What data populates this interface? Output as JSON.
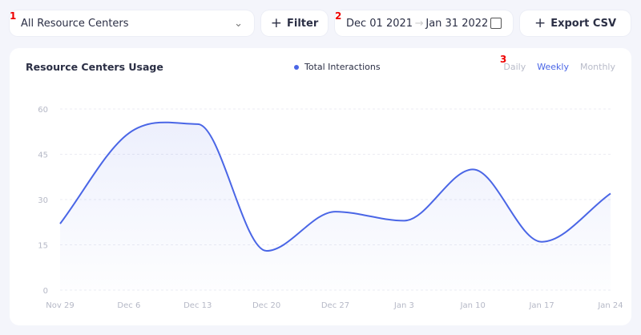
{
  "toolbar": {
    "resource_select": "All Resource Centers",
    "filter_label": "Filter",
    "date_start": "Dec 01 2021",
    "date_end": "Jan 31 2022",
    "export_label": "Export CSV",
    "markers": [
      "1",
      "2",
      "3"
    ]
  },
  "card": {
    "title": "Resource Centers Usage",
    "periods": [
      "Daily",
      "Weekly",
      "Monthly"
    ],
    "active_period": "Weekly"
  },
  "chart_data": {
    "type": "area",
    "title": "Resource Centers Usage",
    "legend": "Total Interactions",
    "legend_position": "top-center",
    "categories": [
      "Nov 29",
      "Dec 6",
      "Dec 13",
      "Dec 20",
      "Dec 27",
      "Jan 3",
      "Jan 10",
      "Jan 17",
      "Jan 24"
    ],
    "series": [
      {
        "name": "Total Interactions",
        "values": [
          22,
          52,
          55,
          13,
          26,
          23,
          40,
          16,
          32
        ]
      }
    ],
    "yticks": [
      0,
      15,
      30,
      45,
      60
    ],
    "ylim": [
      0,
      60
    ],
    "grid": true,
    "color": "#4a66e6"
  }
}
